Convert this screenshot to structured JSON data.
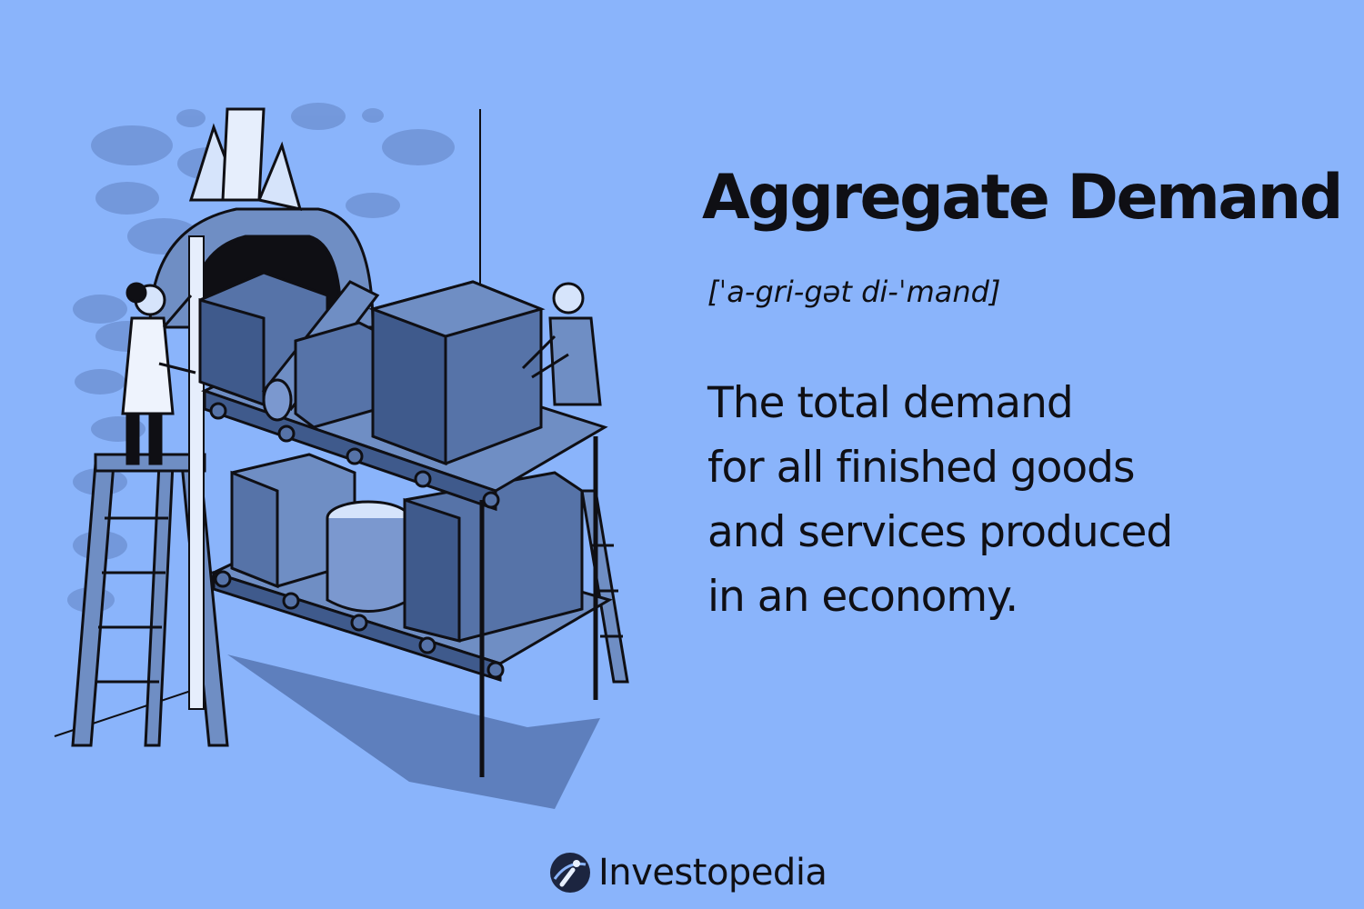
{
  "term": "Aggregate Demand",
  "pronunciation": "[ˈa-gri-gət di-ˈmand]",
  "definition_lines": [
    "The total demand",
    "for all finished goods",
    "and services produced",
    "in an economy."
  ],
  "brand": {
    "name": "Investopedia",
    "logo_icon": "investopedia-logo-icon"
  },
  "illustration": {
    "subject": "conveyor-with-boxes-and-workers",
    "colors": {
      "background": "#8ab4fb",
      "dark_line": "#0f0f14",
      "box_face": "#5673a8",
      "box_side": "#3f5a8c",
      "box_light": "#6f8ec4",
      "shadow": "#5e7fbd",
      "spots": "#7094d6"
    }
  },
  "colors": {
    "background": "#8ab4fb",
    "text": "#0f0f14"
  }
}
